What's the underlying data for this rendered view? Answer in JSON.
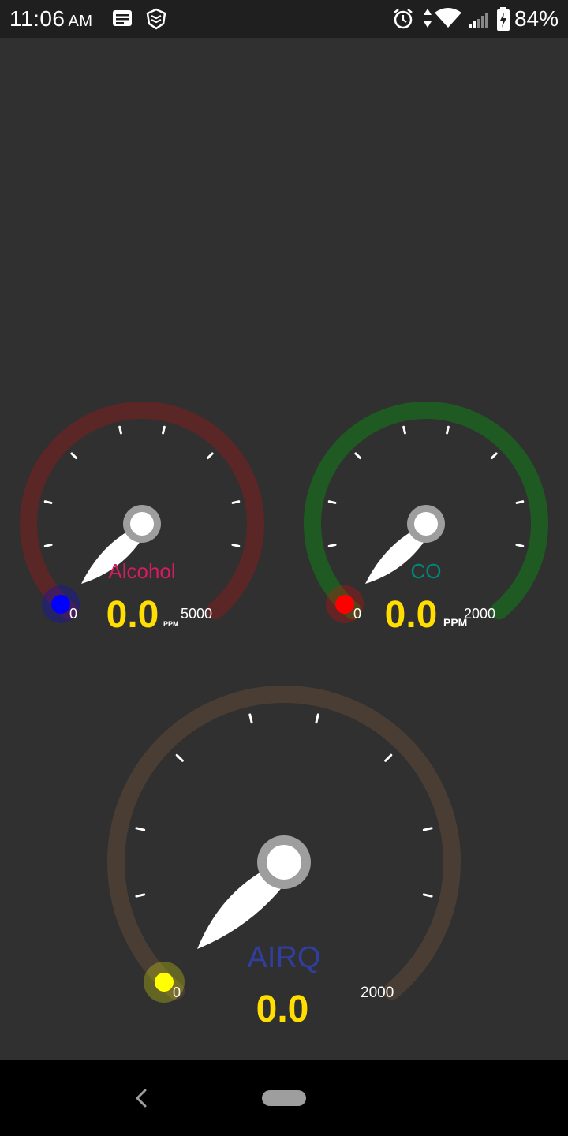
{
  "status_bar": {
    "time": "11:06",
    "ampm": "AM",
    "battery": "84%",
    "icons": [
      "message-icon",
      "shield-icon",
      "alarm-icon",
      "data-arrows-icon",
      "wifi-icon",
      "signal-icon",
      "battery-charging-icon"
    ]
  },
  "gauges": {
    "alcohol": {
      "label": "Alcohol",
      "value": "0.0",
      "unit": "PPM",
      "min": "0",
      "max": "5000",
      "level": 0,
      "ring_color": "#5a2626",
      "label_color": "#d81b60",
      "dot_color": "#0000ff"
    },
    "co": {
      "label": "CO",
      "value": "0.0",
      "unit": "PPM",
      "min": "0",
      "max": "2000",
      "level": 0,
      "ring_color": "#1e5a22",
      "label_color": "#00897b",
      "dot_color": "#ff0000"
    },
    "airq": {
      "label": "AIRQ",
      "value": "0.0",
      "min": "0",
      "max": "2000",
      "level": 0,
      "ring_color": "#4a3e34",
      "label_color": "#303f9f",
      "dot_color": "#ffff00"
    },
    "value_color": "#ffde00"
  },
  "nav_bar": {
    "icons": [
      "back-icon",
      "home-pill-icon"
    ]
  }
}
